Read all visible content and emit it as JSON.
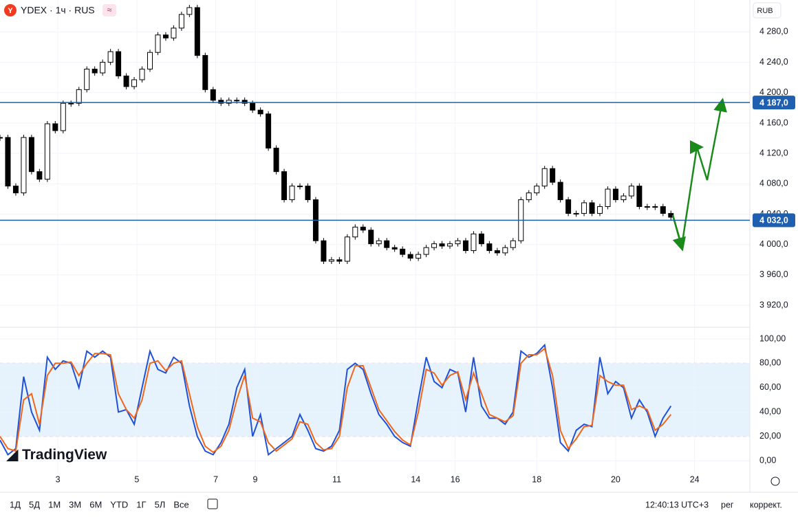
{
  "chart_data": [
    {
      "type": "candlestick",
      "up_color": "#ffffff",
      "down_color": "#000000",
      "grid": true,
      "xlim": [
        0,
        285
      ],
      "ylim": [
        3892,
        4322
      ],
      "yticks": [
        {
          "value": 3920,
          "label": "3 920,0"
        },
        {
          "value": 3960,
          "label": "3 960,0"
        },
        {
          "value": 4000,
          "label": "4 000,0"
        },
        {
          "value": 4040,
          "label": "4 040,0"
        },
        {
          "value": 4080,
          "label": "4 080,0"
        },
        {
          "value": 4120,
          "label": "4 120,0"
        },
        {
          "value": 4160,
          "label": "4 160,0"
        },
        {
          "value": 4200,
          "label": "4 200,0"
        },
        {
          "value": 4240,
          "label": "4 240,0"
        },
        {
          "value": 4280,
          "label": "4 280,0"
        }
      ],
      "levels": [
        {
          "value": 4187,
          "label": "4 187,0"
        },
        {
          "value": 4032,
          "label": "4 032,0"
        }
      ],
      "level_color": "#1f5fb0",
      "x": [
        0,
        3,
        6,
        9,
        12,
        15,
        18,
        21,
        24,
        27,
        30,
        33,
        36,
        39,
        42,
        45,
        48,
        51,
        54,
        57,
        60,
        63,
        66,
        69,
        72,
        75,
        78,
        81,
        84,
        87,
        90,
        93,
        96,
        99,
        102,
        105,
        108,
        111,
        114,
        117,
        120,
        123,
        126,
        129,
        132,
        135,
        138,
        141,
        144,
        147,
        150,
        153,
        156,
        159,
        162,
        165,
        168,
        171,
        174,
        177,
        180,
        183,
        186,
        189,
        192,
        195,
        198,
        201,
        204,
        207,
        210,
        213,
        216,
        219,
        222,
        225,
        228,
        231,
        234,
        237,
        240,
        243,
        246,
        249,
        252,
        255
      ],
      "values": [
        4141,
        4077,
        4068,
        4141,
        4096,
        4086,
        4159,
        4150,
        4186,
        4186,
        4204,
        4231,
        4226,
        4240,
        4254,
        4222,
        4208,
        4217,
        4231,
        4253,
        4276,
        4272,
        4285,
        4303,
        4312,
        4249,
        4204,
        4190,
        4186,
        4190,
        4190,
        4186,
        4177,
        4172,
        4127,
        4096,
        4059,
        4077,
        4077,
        4059,
        4005,
        3978,
        3980,
        3978,
        4010,
        4023,
        4019,
        4001,
        4005,
        3996,
        3994,
        3987,
        3982,
        3987,
        3996,
        4001,
        3998,
        4001,
        4005,
        3992,
        4014,
        4001,
        3992,
        3989,
        3996,
        4005,
        4059,
        4068,
        4077,
        4100,
        4082,
        4059,
        4041,
        4041,
        4055,
        4041,
        4050,
        4073,
        4059,
        4064,
        4077,
        4050,
        4050,
        4050,
        4041,
        4036
      ]
    },
    {
      "type": "line",
      "grid": true,
      "xlim": [
        0,
        285
      ],
      "ylim": [
        -10,
        109
      ],
      "band": [
        20,
        80
      ],
      "band_color": "#e6f2fc",
      "yticks": [
        {
          "value": 0,
          "label": "0,00"
        },
        {
          "value": 20,
          "label": "20,00"
        },
        {
          "value": 40,
          "label": "40,00"
        },
        {
          "value": 60,
          "label": "60,00"
        },
        {
          "value": 80,
          "label": "80,00"
        },
        {
          "value": 100,
          "label": "100,00"
        }
      ],
      "xticks": [
        {
          "value": 22,
          "label": "3"
        },
        {
          "value": 52,
          "label": "5"
        },
        {
          "value": 82,
          "label": "7"
        },
        {
          "value": 97,
          "label": "9"
        },
        {
          "value": 128,
          "label": "11"
        },
        {
          "value": 158,
          "label": "14"
        },
        {
          "value": 173,
          "label": "16"
        },
        {
          "value": 204,
          "label": "18"
        },
        {
          "value": 234,
          "label": "20"
        },
        {
          "value": 264,
          "label": "24"
        }
      ],
      "x": [
        0,
        3,
        6,
        9,
        12,
        15,
        18,
        21,
        24,
        27,
        30,
        33,
        36,
        39,
        42,
        45,
        48,
        51,
        54,
        57,
        60,
        63,
        66,
        69,
        72,
        75,
        78,
        81,
        84,
        87,
        90,
        93,
        96,
        99,
        102,
        105,
        108,
        111,
        114,
        117,
        120,
        123,
        126,
        129,
        132,
        135,
        138,
        141,
        144,
        147,
        150,
        153,
        156,
        159,
        162,
        165,
        168,
        171,
        174,
        177,
        180,
        183,
        186,
        189,
        192,
        195,
        198,
        201,
        204,
        207,
        210,
        213,
        216,
        219,
        222,
        225,
        228,
        231,
        234,
        237,
        240,
        243,
        246,
        249,
        252,
        255
      ],
      "series": [
        {
          "color": "#1e50d8",
          "values": [
            17,
            5,
            10,
            69,
            40,
            25,
            85,
            75,
            82,
            80,
            60,
            90,
            85,
            90,
            85,
            40,
            42,
            30,
            60,
            90,
            75,
            72,
            85,
            80,
            45,
            20,
            8,
            5,
            15,
            30,
            60,
            75,
            20,
            38,
            5,
            10,
            15,
            20,
            38,
            25,
            10,
            8,
            12,
            25,
            75,
            80,
            75,
            55,
            38,
            30,
            20,
            15,
            12,
            50,
            85,
            65,
            60,
            75,
            72,
            40,
            85,
            45,
            35,
            35,
            30,
            40,
            90,
            85,
            88,
            95,
            60,
            15,
            8,
            25,
            30,
            28,
            85,
            55,
            65,
            60,
            35,
            50,
            40,
            20,
            35,
            45
          ]
        },
        {
          "color": "#f0661a",
          "values": [
            20,
            10,
            8,
            50,
            55,
            30,
            70,
            80,
            80,
            81,
            70,
            80,
            88,
            88,
            87,
            55,
            42,
            35,
            50,
            80,
            82,
            74,
            80,
            82,
            55,
            28,
            12,
            7,
            12,
            25,
            50,
            70,
            35,
            32,
            15,
            8,
            13,
            18,
            32,
            30,
            15,
            9,
            10,
            20,
            60,
            78,
            78,
            60,
            42,
            33,
            24,
            17,
            13,
            40,
            75,
            72,
            62,
            70,
            73,
            50,
            72,
            55,
            38,
            35,
            32,
            37,
            80,
            87,
            87,
            92,
            70,
            25,
            10,
            18,
            28,
            29,
            70,
            65,
            62,
            62,
            42,
            45,
            42,
            25,
            30,
            38
          ]
        }
      ]
    }
  ],
  "ui": {
    "icon": "Y",
    "symbol": "YDEX · 1ч · RUS",
    "badge": "≈",
    "currency": "RUB",
    "logo": "TradingView",
    "timeframes": [
      "1Д",
      "5Д",
      "1М",
      "3М",
      "6М",
      "YTD",
      "1Г",
      "5Л",
      "Все"
    ],
    "time": "12:40:13 UTC+3",
    "scale": "рег",
    "adjust": "коррект."
  }
}
